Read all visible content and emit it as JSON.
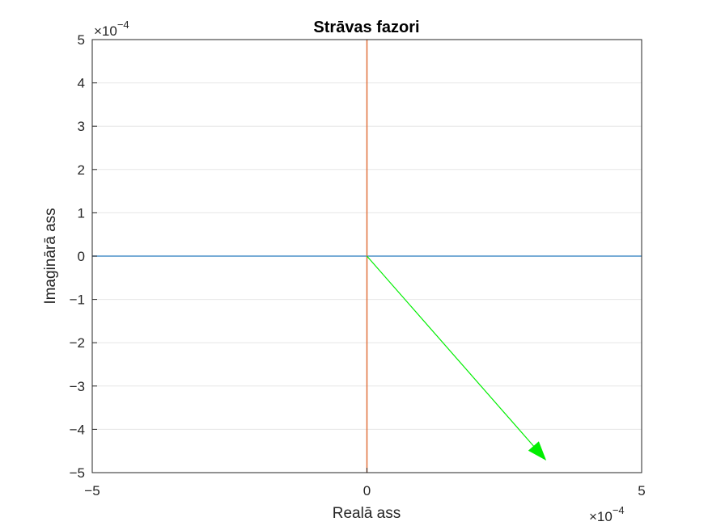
{
  "chart_data": {
    "type": "line",
    "title": "Strāvas fazori",
    "xlabel": "Realā ass",
    "ylabel": "Imaginārā ass",
    "xlim": [
      -5,
      5
    ],
    "ylim": [
      -5,
      5
    ],
    "x_multiplier": "×10",
    "x_multiplier_exponent": "−4",
    "y_multiplier": "×10",
    "y_multiplier_exponent": "−4",
    "x_ticks": [
      -5,
      0,
      5
    ],
    "x_tick_labels": [
      "−5",
      "0",
      "5"
    ],
    "y_ticks": [
      5,
      4,
      3,
      2,
      1,
      0,
      -1,
      -2,
      -3,
      -4,
      -5
    ],
    "y_tick_labels": [
      "5",
      "4",
      "3",
      "2",
      "1",
      "0",
      "−1",
      "−2",
      "−3",
      "−4",
      "−5"
    ],
    "grid": true,
    "series": [
      {
        "kind": "line",
        "color": "#4a90c8",
        "x": [
          -5,
          5
        ],
        "y": [
          0,
          0
        ]
      },
      {
        "kind": "line",
        "color": "#e0703a",
        "x": [
          0,
          0
        ],
        "y": [
          -5,
          5
        ]
      },
      {
        "kind": "arrow",
        "color": "#00ee00",
        "x": [
          0,
          3.25
        ],
        "y": [
          0,
          -4.7
        ]
      }
    ]
  }
}
